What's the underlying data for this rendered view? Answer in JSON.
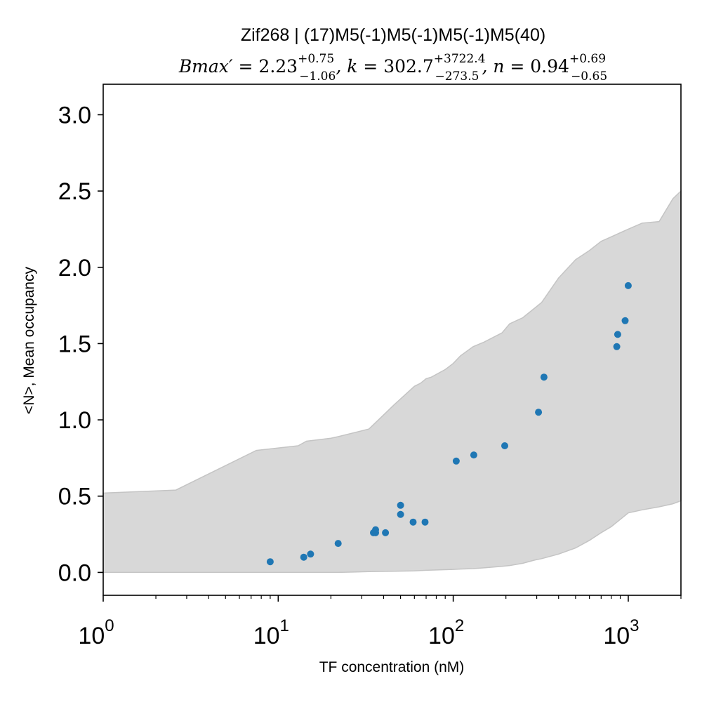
{
  "chart_data": {
    "type": "scatter",
    "title": "Zif268 | (17)M5(-1)M5(-1)M5(-1)M5(40)",
    "subtitle_parts": {
      "bmax_label": "Bmax′ = ",
      "bmax_value": "2.23",
      "bmax_plus": "+0.75",
      "bmax_minus": "−1.06",
      "k_label": ", k = ",
      "k_value": "302.7",
      "k_plus": "+3722.4",
      "k_minus": "−273.5",
      "n_label": ", n = ",
      "n_value": "0.94",
      "n_plus": "+0.69",
      "n_minus": "−0.65"
    },
    "xlabel": "TF concentration (nM)",
    "ylabel": "<N>, Mean occupancy",
    "xscale": "log",
    "xlim": [
      1,
      2000
    ],
    "ylim": [
      -0.15,
      3.2
    ],
    "x_ticks": [
      {
        "base": "10",
        "exp": "0",
        "value": 1
      },
      {
        "base": "10",
        "exp": "1",
        "value": 10
      },
      {
        "base": "10",
        "exp": "2",
        "value": 100
      },
      {
        "base": "10",
        "exp": "3",
        "value": 1000
      }
    ],
    "y_ticks": [
      {
        "label": "0.0",
        "value": 0.0
      },
      {
        "label": "0.5",
        "value": 0.5
      },
      {
        "label": "1.0",
        "value": 1.0
      },
      {
        "label": "1.5",
        "value": 1.5
      },
      {
        "label": "2.0",
        "value": 2.0
      },
      {
        "label": "2.5",
        "value": 2.5
      },
      {
        "label": "3.0",
        "value": 3.0
      }
    ],
    "grid": false,
    "points": {
      "color": "#1f77b4",
      "x": [
        9,
        14,
        15.3,
        22,
        35,
        36,
        36,
        41,
        50,
        50,
        59,
        69,
        104,
        131,
        197,
        307,
        330,
        860,
        870,
        960,
        1000
      ],
      "y": [
        0.07,
        0.1,
        0.12,
        0.19,
        0.26,
        0.26,
        0.28,
        0.26,
        0.44,
        0.38,
        0.33,
        0.33,
        0.73,
        0.77,
        0.83,
        1.05,
        1.28,
        1.48,
        1.56,
        1.65,
        1.88
      ]
    },
    "band": {
      "fill": "#d8d8d8",
      "edge": "#c4c4c4",
      "x": [
        1,
        2.6,
        7.5,
        13,
        14.5,
        20,
        22,
        33,
        46,
        60,
        65,
        70,
        75,
        90,
        100,
        110,
        130,
        150,
        190,
        210,
        250,
        290,
        320,
        400,
        500,
        600,
        700,
        800,
        1000,
        1200,
        1500,
        1800,
        2000
      ],
      "upper": [
        0.52,
        0.54,
        0.8,
        0.83,
        0.86,
        0.88,
        0.89,
        0.94,
        1.1,
        1.22,
        1.24,
        1.27,
        1.28,
        1.33,
        1.37,
        1.42,
        1.48,
        1.51,
        1.57,
        1.63,
        1.67,
        1.73,
        1.77,
        1.93,
        2.05,
        2.11,
        2.17,
        2.2,
        2.25,
        2.29,
        2.3,
        2.45,
        2.5
      ],
      "lower": [
        0.0,
        0.0,
        0.0,
        0.0,
        0.0,
        0.0,
        0.0,
        0.005,
        0.008,
        0.01,
        0.012,
        0.014,
        0.015,
        0.018,
        0.02,
        0.022,
        0.025,
        0.03,
        0.04,
        0.045,
        0.06,
        0.08,
        0.09,
        0.12,
        0.16,
        0.21,
        0.26,
        0.3,
        0.39,
        0.41,
        0.43,
        0.45,
        0.47
      ]
    }
  }
}
